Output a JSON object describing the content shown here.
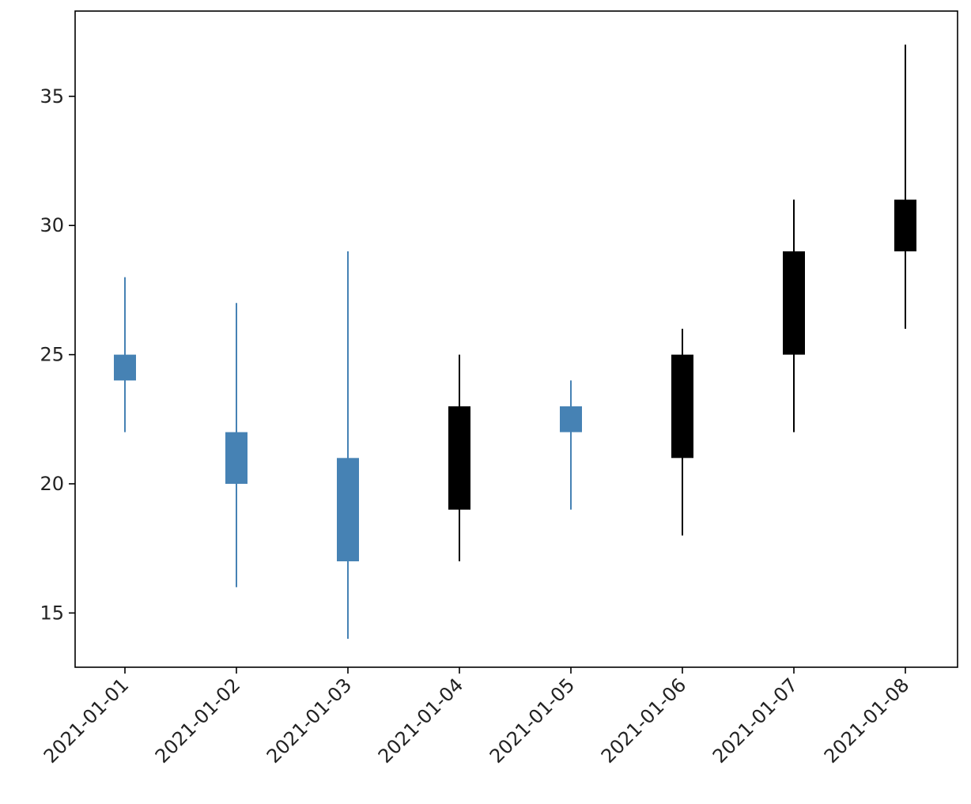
{
  "chart_data": {
    "type": "candlestick",
    "title": "",
    "xlabel": "",
    "ylabel": "",
    "categories": [
      "2021-01-01",
      "2021-01-02",
      "2021-01-03",
      "2021-01-04",
      "2021-01-05",
      "2021-01-06",
      "2021-01-07",
      "2021-01-08"
    ],
    "open": [
      25,
      22,
      21,
      19,
      23,
      21,
      25,
      29
    ],
    "high": [
      28,
      27,
      29,
      25,
      24,
      26,
      31,
      37
    ],
    "low": [
      22,
      16,
      14,
      17,
      19,
      18,
      22,
      26
    ],
    "close": [
      24,
      20,
      17,
      23,
      22,
      25,
      29,
      31
    ],
    "ylim": [
      12.9,
      38.3
    ],
    "yticks": [
      15,
      20,
      25,
      30,
      35
    ],
    "grid": false,
    "colors": {
      "up": "#000000",
      "down": "#4682b4",
      "axis": "#000000",
      "text": "#222222"
    }
  }
}
